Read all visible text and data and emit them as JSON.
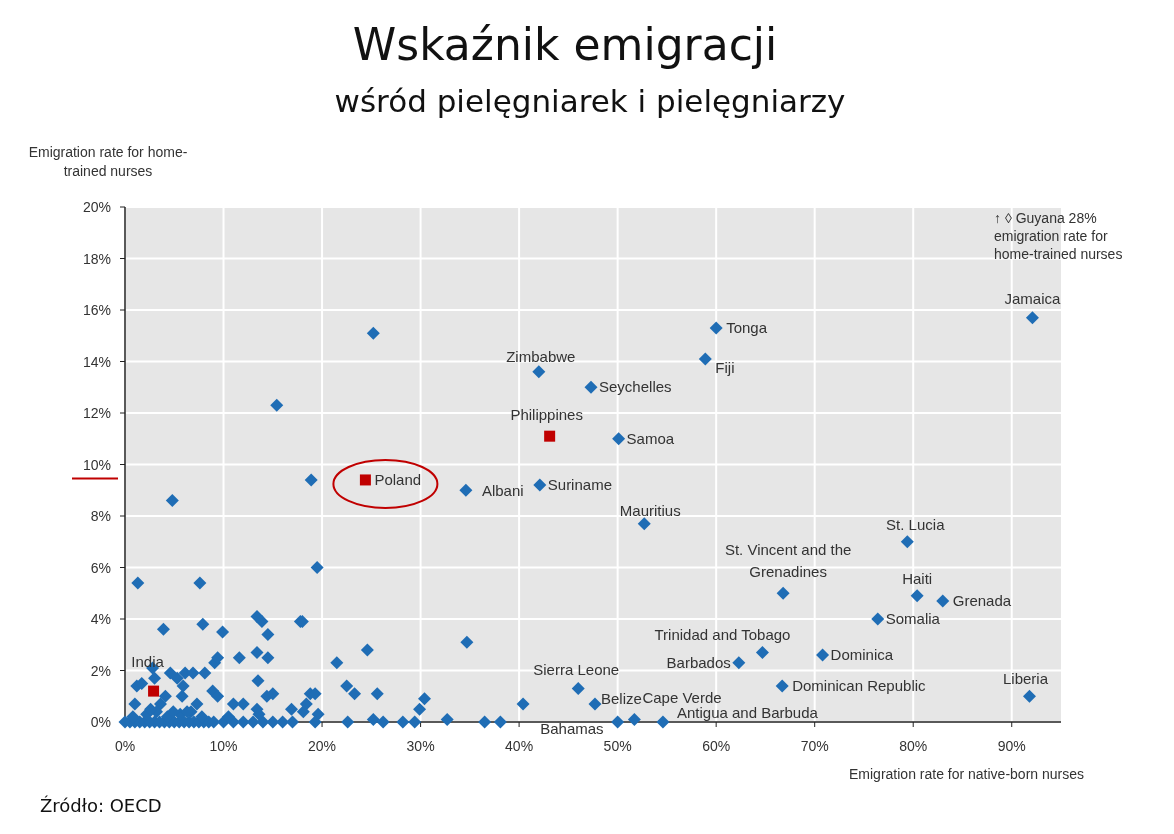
{
  "chart_data": {
    "type": "scatter",
    "title": "Wskaźnik emigracji",
    "subtitle": "wśród pielęgniarek i pielęgniarzy",
    "xlabel": "Emigration rate for native-born nurses",
    "ylabel": "Emigration rate for home-trained nurses",
    "xlim": [
      0,
      95
    ],
    "ylim": [
      0,
      20
    ],
    "xticks": [
      {
        "value": 0,
        "label": "0%"
      },
      {
        "value": 10,
        "label": "10%"
      },
      {
        "value": 20,
        "label": "20%"
      },
      {
        "value": 30,
        "label": "30%"
      },
      {
        "value": 40,
        "label": "40%"
      },
      {
        "value": 50,
        "label": "50%"
      },
      {
        "value": 60,
        "label": "60%"
      },
      {
        "value": 70,
        "label": "70%"
      },
      {
        "value": 80,
        "label": "80%"
      },
      {
        "value": 90,
        "label": "90%"
      }
    ],
    "yticks": [
      {
        "value": 0,
        "label": "0%"
      },
      {
        "value": 2,
        "label": "2%"
      },
      {
        "value": 4,
        "label": "4%"
      },
      {
        "value": 6,
        "label": "6%"
      },
      {
        "value": 8,
        "label": "8%"
      },
      {
        "value": 10,
        "label": "10%"
      },
      {
        "value": 12,
        "label": "12%"
      },
      {
        "value": 14,
        "label": "14%"
      },
      {
        "value": 16,
        "label": "16%"
      },
      {
        "value": 18,
        "label": "18%"
      },
      {
        "value": 20,
        "label": "20%"
      }
    ],
    "grid": true,
    "series": [
      {
        "color": "#1f6db5",
        "marker": "diamond",
        "x": [
          92.1,
          60.0,
          58.9,
          42.0,
          47.3,
          50.1,
          34.6,
          42.1,
          52.7,
          79.4,
          66.8,
          80.4,
          83.0,
          76.4,
          64.7,
          62.3,
          70.8,
          66.7,
          91.8,
          46.0,
          47.7,
          51.7,
          50.0,
          54.6,
          25.2,
          15.4,
          18.9,
          4.8,
          19.5,
          17.8,
          21.5,
          24.6,
          34.7,
          22.5,
          23.3,
          25.6,
          18.8,
          19.3,
          18.4,
          18.1,
          19.6,
          19.3,
          22.6,
          25.2,
          26.2,
          28.2,
          29.4,
          29.9,
          30.4,
          32.7,
          36.5,
          38.1,
          40.4,
          1.3,
          7.6,
          3.9,
          7.9,
          9.9,
          13.4,
          13.9,
          14.5,
          18.0,
          9.1,
          9.4,
          11.6,
          13.4,
          14.5,
          2.8,
          3.0,
          4.6,
          5.3,
          6.1,
          6.9,
          8.1,
          1.2,
          1.7,
          1.0,
          5.8,
          5.9,
          8.9,
          9.4,
          11.0,
          12.0,
          13.5,
          14.4,
          15.0,
          13.4,
          16.9,
          3.6,
          4.1,
          7.3,
          0.0,
          0.5,
          1.0,
          1.5,
          2.0,
          2.5,
          3.0,
          3.5,
          4.0,
          4.5,
          5.0,
          5.5,
          6.0,
          6.5,
          7.0,
          7.5,
          8.0,
          8.5,
          9.0,
          10.0,
          11.0,
          12.0,
          13.0,
          14.0,
          15.0,
          16.0,
          17.0,
          0.8,
          2.2,
          3.2,
          4.3,
          5.6,
          6.7,
          7.8,
          10.5,
          13.6,
          2.6,
          4.9,
          6.3
        ],
        "values": [
          15.7,
          15.3,
          14.1,
          13.6,
          13.0,
          11.0,
          9.0,
          9.2,
          7.7,
          7.0,
          5.0,
          4.9,
          4.7,
          4.0,
          2.7,
          2.3,
          2.6,
          1.4,
          1.0,
          1.3,
          0.7,
          0.1,
          0.0,
          0.0,
          15.1,
          12.3,
          9.4,
          8.6,
          6.0,
          3.9,
          2.3,
          2.8,
          3.1,
          1.4,
          1.1,
          1.1,
          1.1,
          1.1,
          0.7,
          0.4,
          0.3,
          0.0,
          0.0,
          0.1,
          0.0,
          0.0,
          0.0,
          0.5,
          0.9,
          0.1,
          0.0,
          0.0,
          0.7,
          5.4,
          5.4,
          3.6,
          3.8,
          3.5,
          4.1,
          3.9,
          3.4,
          3.9,
          2.3,
          2.5,
          2.5,
          2.7,
          2.5,
          2.1,
          1.7,
          1.9,
          1.7,
          1.9,
          1.9,
          1.9,
          1.4,
          1.5,
          0.7,
          1.0,
          1.4,
          1.2,
          1.0,
          0.7,
          0.7,
          1.6,
          1.0,
          1.1,
          0.5,
          0.5,
          0.7,
          1.0,
          0.7,
          0.0,
          0.0,
          0.0,
          0.0,
          0.0,
          0.0,
          0.0,
          0.0,
          0.0,
          0.0,
          0.0,
          0.0,
          0.0,
          0.0,
          0.0,
          0.0,
          0.0,
          0.0,
          0.0,
          0.0,
          0.0,
          0.0,
          0.0,
          0.0,
          0.0,
          0.0,
          0.0,
          0.2,
          0.3,
          0.4,
          0.2,
          0.3,
          0.4,
          0.2,
          0.2,
          0.3,
          0.5,
          0.4,
          0.4
        ]
      },
      {
        "color": "#c00000",
        "marker": "square",
        "x": [
          43.1,
          24.4,
          2.9
        ],
        "values": [
          11.1,
          9.4,
          1.2
        ]
      }
    ],
    "annotations": [
      {
        "text": "Jamaica",
        "x": 92.1,
        "y": 15.7
      },
      {
        "text": "Tonga",
        "x": 60.0,
        "y": 15.3
      },
      {
        "text": "Fiji",
        "x": 58.9,
        "y": 14.1
      },
      {
        "text": "Zimbabwe",
        "x": 42.0,
        "y": 13.6
      },
      {
        "text": "Seychelles",
        "x": 47.3,
        "y": 13.0
      },
      {
        "text": "Philippines",
        "x": 43.1,
        "y": 11.1
      },
      {
        "text": "Samoa",
        "x": 50.1,
        "y": 11.0
      },
      {
        "text": "Poland",
        "x": 24.4,
        "y": 9.4
      },
      {
        "text": "Albani",
        "x": 34.6,
        "y": 9.0
      },
      {
        "text": "Suriname",
        "x": 42.1,
        "y": 9.2
      },
      {
        "text": "Mauritius",
        "x": 52.7,
        "y": 7.7
      },
      {
        "text": "St. Lucia",
        "x": 79.4,
        "y": 7.0
      },
      {
        "text": "St. Vincent and the\nGrenadines",
        "x": 66.8,
        "y": 5.0
      },
      {
        "text": "Haiti",
        "x": 80.4,
        "y": 4.9
      },
      {
        "text": "Grenada",
        "x": 83.0,
        "y": 4.7
      },
      {
        "text": "Somalia",
        "x": 76.4,
        "y": 4.0
      },
      {
        "text": "Trinidad and Tobago",
        "x": 64.7,
        "y": 2.7
      },
      {
        "text": "Barbados",
        "x": 62.3,
        "y": 2.3
      },
      {
        "text": "Dominica",
        "x": 70.8,
        "y": 2.6
      },
      {
        "text": "Dominican Republic",
        "x": 66.7,
        "y": 1.4
      },
      {
        "text": "Liberia",
        "x": 91.8,
        "y": 1.0
      },
      {
        "text": "Sierra Leone",
        "x": 46.0,
        "y": 1.3
      },
      {
        "text": "Belize",
        "x": 47.7,
        "y": 0.7
      },
      {
        "text": "Cape Verde",
        "x": 51.7,
        "y": 0.1
      },
      {
        "text": "Bahamas",
        "x": 50.0,
        "y": 0.0
      },
      {
        "text": "Antigua and Barbuda",
        "x": 54.6,
        "y": 0.0
      },
      {
        "text": "India",
        "x": 2.9,
        "y": 1.2
      },
      "↑ ◊ Guyana 28%\nemigration rate for\nhome-trained nurses",
      "Źródło: OECD"
    ]
  }
}
